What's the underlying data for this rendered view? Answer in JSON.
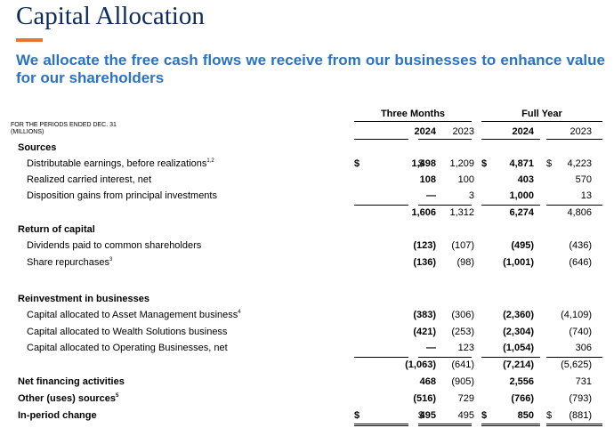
{
  "title": "Capital Allocation",
  "subtitle": "We allocate the free cash flows we receive from our businesses to enhance value for our shareholders",
  "periods_label": "FOR THE PERIODS ENDED DEC. 31",
  "units_label": "(MILLIONS)",
  "colors": {
    "title": "#0d2b5c",
    "accent": "#e8762c",
    "subtitle": "#2a73c4"
  },
  "table": {
    "groups": [
      "Three Months",
      "Full Year"
    ],
    "years": [
      "2024",
      "2023",
      "2024",
      "2023"
    ],
    "rows": [
      {
        "label": "Sources",
        "type": "section"
      },
      {
        "label": "Distributable earnings, before realizations",
        "sup": "1,2",
        "values": [
          "1,498",
          "1,209",
          "4,871",
          "4,223"
        ],
        "symbols": [
          "$",
          "$",
          "$",
          "$"
        ]
      },
      {
        "label": "Realized carried interest, net",
        "values": [
          "108",
          "100",
          "403",
          "570"
        ]
      },
      {
        "label": "Disposition gains from principal investments",
        "values": [
          "—",
          "3",
          "1,000",
          "13"
        ]
      },
      {
        "label": "",
        "values": [
          "1,606",
          "1,312",
          "6,274",
          "4,806"
        ]
      },
      {
        "label": "Return of capital",
        "type": "section"
      },
      {
        "label": "Dividends paid to common shareholders",
        "values": [
          "(123)",
          "(107)",
          "(495)",
          "(436)"
        ]
      },
      {
        "label": "Share repurchases",
        "sup": "3",
        "values": [
          "(136)",
          "(98)",
          "(1,001)",
          "(646)"
        ]
      },
      {
        "label": "Reinvestment in businesses",
        "type": "section"
      },
      {
        "label": "Capital allocated to Asset Management business",
        "sup": "4",
        "values": [
          "(383)",
          "(306)",
          "(2,360)",
          "(4,109)"
        ]
      },
      {
        "label": "Capital allocated to Wealth Solutions business",
        "values": [
          "(421)",
          "(253)",
          "(2,304)",
          "(740)"
        ]
      },
      {
        "label": "Capital allocated to Operating Businesses, net",
        "values": [
          "—",
          "123",
          "(1,054)",
          "306"
        ]
      },
      {
        "label": "",
        "values": [
          "(1,063)",
          "(641)",
          "(7,214)",
          "(5,625)"
        ]
      },
      {
        "label": "Net financing activities",
        "values": [
          "468",
          "(905)",
          "2,556",
          "731"
        ]
      },
      {
        "label": "Other (uses) sources",
        "sup": "5",
        "values": [
          "(516)",
          "729",
          "(766)",
          "(793)"
        ]
      },
      {
        "label": "In-period change",
        "values": [
          "495",
          "495",
          "850",
          "(881)"
        ],
        "symbols": [
          "$",
          "$",
          "$",
          "$"
        ]
      }
    ]
  }
}
